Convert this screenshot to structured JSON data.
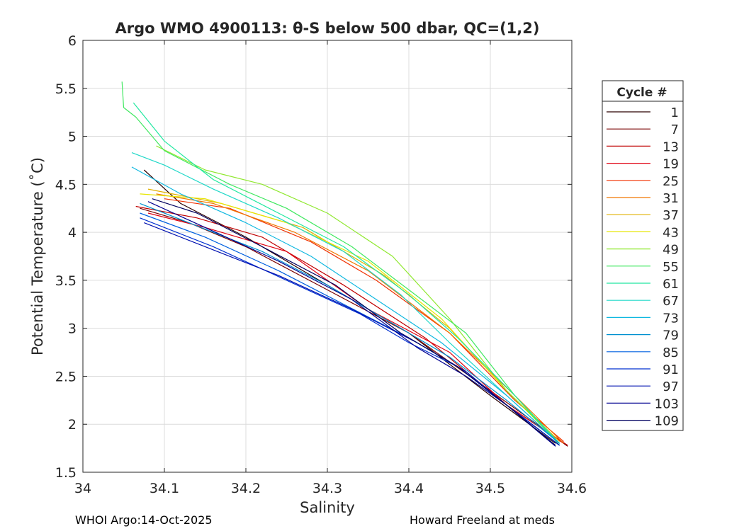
{
  "chart_data": {
    "type": "line",
    "title": "Argo WMO 4900113: θ-S below 500 dbar,  QC=(1,2)",
    "xlabel": "Salinity",
    "ylabel": "Potential Temperature (˚C)",
    "xlim": [
      34.0,
      34.6
    ],
    "ylim": [
      1.5,
      6.0
    ],
    "xticks": [
      "34",
      "34.1",
      "34.2",
      "34.3",
      "34.4",
      "34.5",
      "34.6"
    ],
    "yticks": [
      "1.5",
      "2",
      "2.5",
      "3",
      "3.5",
      "4",
      "4.5",
      "5",
      "5.5",
      "6"
    ],
    "grid": true,
    "legend": {
      "title": "Cycle #",
      "placement": "right",
      "entries": [
        {
          "label": "1",
          "color": "#2b0000"
        },
        {
          "label": "7",
          "color": "#7a0000"
        },
        {
          "label": "13",
          "color": "#c00000"
        },
        {
          "label": "19",
          "color": "#e00010"
        },
        {
          "label": "25",
          "color": "#f03000"
        },
        {
          "label": "31",
          "color": "#f07800"
        },
        {
          "label": "37",
          "color": "#e0b000"
        },
        {
          "label": "43",
          "color": "#e6e600"
        },
        {
          "label": "49",
          "color": "#90e830"
        },
        {
          "label": "55",
          "color": "#40e860"
        },
        {
          "label": "61",
          "color": "#20e8a0"
        },
        {
          "label": "67",
          "color": "#20d8c8"
        },
        {
          "label": "73",
          "color": "#10b8e0"
        },
        {
          "label": "79",
          "color": "#0090d0"
        },
        {
          "label": "85",
          "color": "#0060e0"
        },
        {
          "label": "91",
          "color": "#0030d0"
        },
        {
          "label": "97",
          "color": "#0010b0"
        },
        {
          "label": "103",
          "color": "#000090"
        },
        {
          "label": "109",
          "color": "#000060"
        }
      ]
    },
    "series": [
      {
        "name": "1",
        "color": "#2b0000",
        "x": [
          34.075,
          34.12,
          34.2,
          34.3,
          34.4,
          34.5,
          34.58
        ],
        "y": [
          4.65,
          4.3,
          3.95,
          3.45,
          2.95,
          2.3,
          1.8
        ]
      },
      {
        "name": "7",
        "color": "#7a0000",
        "x": [
          34.07,
          34.13,
          34.2,
          34.3,
          34.4,
          34.5,
          34.595
        ],
        "y": [
          4.25,
          4.1,
          3.85,
          3.4,
          2.95,
          2.35,
          1.77
        ]
      },
      {
        "name": "13",
        "color": "#c00000",
        "x": [
          34.065,
          34.14,
          34.22,
          34.32,
          34.42,
          34.52,
          34.595
        ],
        "y": [
          4.27,
          4.15,
          3.95,
          3.45,
          2.9,
          2.2,
          1.78
        ]
      },
      {
        "name": "19",
        "color": "#e00010",
        "x": [
          34.08,
          34.15,
          34.25,
          34.35,
          34.45,
          34.52,
          34.59
        ],
        "y": [
          4.2,
          4.05,
          3.8,
          3.2,
          2.75,
          2.2,
          1.8
        ]
      },
      {
        "name": "25",
        "color": "#f03000",
        "x": [
          34.1,
          34.18,
          34.28,
          34.36,
          34.45,
          34.53,
          34.59
        ],
        "y": [
          4.35,
          4.25,
          3.9,
          3.5,
          2.95,
          2.25,
          1.82
        ]
      },
      {
        "name": "31",
        "color": "#f07800",
        "x": [
          34.09,
          34.16,
          34.26,
          34.35,
          34.45,
          34.53,
          34.59
        ],
        "y": [
          4.4,
          4.3,
          4.0,
          3.6,
          2.95,
          2.3,
          1.8
        ]
      },
      {
        "name": "37",
        "color": "#e0b000",
        "x": [
          34.08,
          34.17,
          34.27,
          34.37,
          34.45,
          34.52,
          34.585
        ],
        "y": [
          4.45,
          4.3,
          4.05,
          3.55,
          3.0,
          2.35,
          1.82
        ]
      },
      {
        "name": "43",
        "color": "#e6e600",
        "x": [
          34.07,
          34.15,
          34.25,
          34.35,
          34.44,
          34.52,
          34.585
        ],
        "y": [
          4.4,
          4.35,
          4.1,
          3.7,
          3.1,
          2.35,
          1.8
        ]
      },
      {
        "name": "49",
        "color": "#90e830",
        "x": [
          34.09,
          34.15,
          34.22,
          34.3,
          34.38,
          34.45,
          34.52,
          34.585
        ],
        "y": [
          4.9,
          4.65,
          4.5,
          4.2,
          3.75,
          3.1,
          2.35,
          1.8
        ]
      },
      {
        "name": "55",
        "color": "#40e860",
        "x": [
          34.048,
          34.05,
          34.065,
          34.1,
          34.18,
          34.25,
          34.33,
          34.4,
          34.47,
          34.53,
          34.585
        ],
        "y": [
          5.57,
          5.3,
          5.2,
          4.85,
          4.5,
          4.25,
          3.85,
          3.4,
          2.95,
          2.3,
          1.78
        ]
      },
      {
        "name": "61",
        "color": "#20e8a0",
        "x": [
          34.062,
          34.1,
          34.16,
          34.24,
          34.32,
          34.4,
          34.46,
          34.53,
          34.585
        ],
        "y": [
          5.35,
          4.95,
          4.55,
          4.2,
          3.85,
          3.35,
          2.9,
          2.3,
          1.8
        ]
      },
      {
        "name": "67",
        "color": "#20d8c8",
        "x": [
          34.06,
          34.1,
          34.16,
          34.24,
          34.32,
          34.39,
          34.45,
          34.52,
          34.585
        ],
        "y": [
          4.83,
          4.7,
          4.45,
          4.15,
          3.8,
          3.35,
          2.85,
          2.3,
          1.8
        ]
      },
      {
        "name": "73",
        "color": "#10b8e0",
        "x": [
          34.06,
          34.12,
          34.2,
          34.28,
          34.36,
          34.44,
          34.52,
          34.585
        ],
        "y": [
          4.68,
          4.4,
          4.1,
          3.75,
          3.3,
          2.85,
          2.3,
          1.8
        ]
      },
      {
        "name": "79",
        "color": "#0090d0",
        "x": [
          34.07,
          34.13,
          34.22,
          34.3,
          34.38,
          34.45,
          34.52,
          34.585
        ],
        "y": [
          4.3,
          4.1,
          3.8,
          3.45,
          3.05,
          2.7,
          2.25,
          1.8
        ]
      },
      {
        "name": "85",
        "color": "#0060e0",
        "x": [
          34.07,
          34.15,
          34.24,
          34.32,
          34.4,
          34.46,
          34.52,
          34.585
        ],
        "y": [
          4.2,
          3.95,
          3.6,
          3.25,
          2.9,
          2.6,
          2.2,
          1.78
        ]
      },
      {
        "name": "91",
        "color": "#0030d0",
        "x": [
          34.07,
          34.16,
          34.25,
          34.34,
          34.4,
          34.46,
          34.52,
          34.585
        ],
        "y": [
          4.15,
          3.85,
          3.5,
          3.15,
          2.85,
          2.6,
          2.2,
          1.78
        ]
      },
      {
        "name": "97",
        "color": "#0010b0",
        "x": [
          34.075,
          34.15,
          34.24,
          34.33,
          34.41,
          34.47,
          34.52,
          34.585
        ],
        "y": [
          4.1,
          3.85,
          3.55,
          3.2,
          2.85,
          2.55,
          2.2,
          1.78
        ]
      },
      {
        "name": "103",
        "color": "#000090",
        "x": [
          34.08,
          34.15,
          34.24,
          34.33,
          34.41,
          34.47,
          34.52,
          34.58
        ],
        "y": [
          4.32,
          4.05,
          3.7,
          3.3,
          2.8,
          2.5,
          2.2,
          1.77
        ]
      },
      {
        "name": "109",
        "color": "#000060",
        "x": [
          34.085,
          34.14,
          34.22,
          34.31,
          34.39,
          34.46,
          34.52,
          34.58
        ],
        "y": [
          4.35,
          4.2,
          3.85,
          3.45,
          2.95,
          2.6,
          2.2,
          1.78
        ]
      }
    ]
  },
  "footer": {
    "left": "WHOI Argo:14-Oct-2025",
    "right": "Howard Freeland at meds"
  }
}
